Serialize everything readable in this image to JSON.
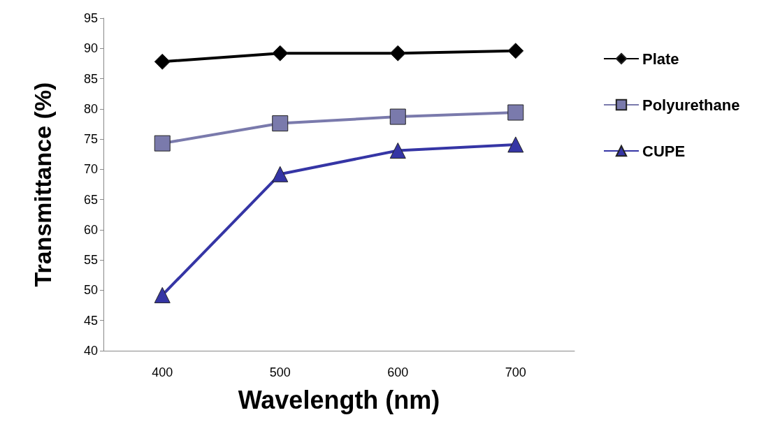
{
  "chart_data": {
    "type": "line",
    "xlabel": "Wavelength (nm)",
    "ylabel": "Transmittance (%)",
    "categories": [
      "400",
      "500",
      "600",
      "700"
    ],
    "series": [
      {
        "name": "Plate",
        "color": "#000000",
        "marker": "diamond",
        "values": [
          87.8,
          89.2,
          89.2,
          89.6
        ]
      },
      {
        "name": "Polyurethane",
        "color": "#7a7aac",
        "marker": "square",
        "values": [
          74.3,
          77.6,
          78.7,
          79.4
        ]
      },
      {
        "name": "CUPE",
        "color": "#3535a5",
        "marker": "triangle",
        "values": [
          49.2,
          69.2,
          73.1,
          74.1
        ]
      }
    ],
    "ylim": [
      40,
      95
    ],
    "yticks": [
      40,
      45,
      50,
      55,
      60,
      65,
      70,
      75,
      80,
      85,
      90,
      95
    ],
    "grid": false,
    "legend": "right"
  }
}
